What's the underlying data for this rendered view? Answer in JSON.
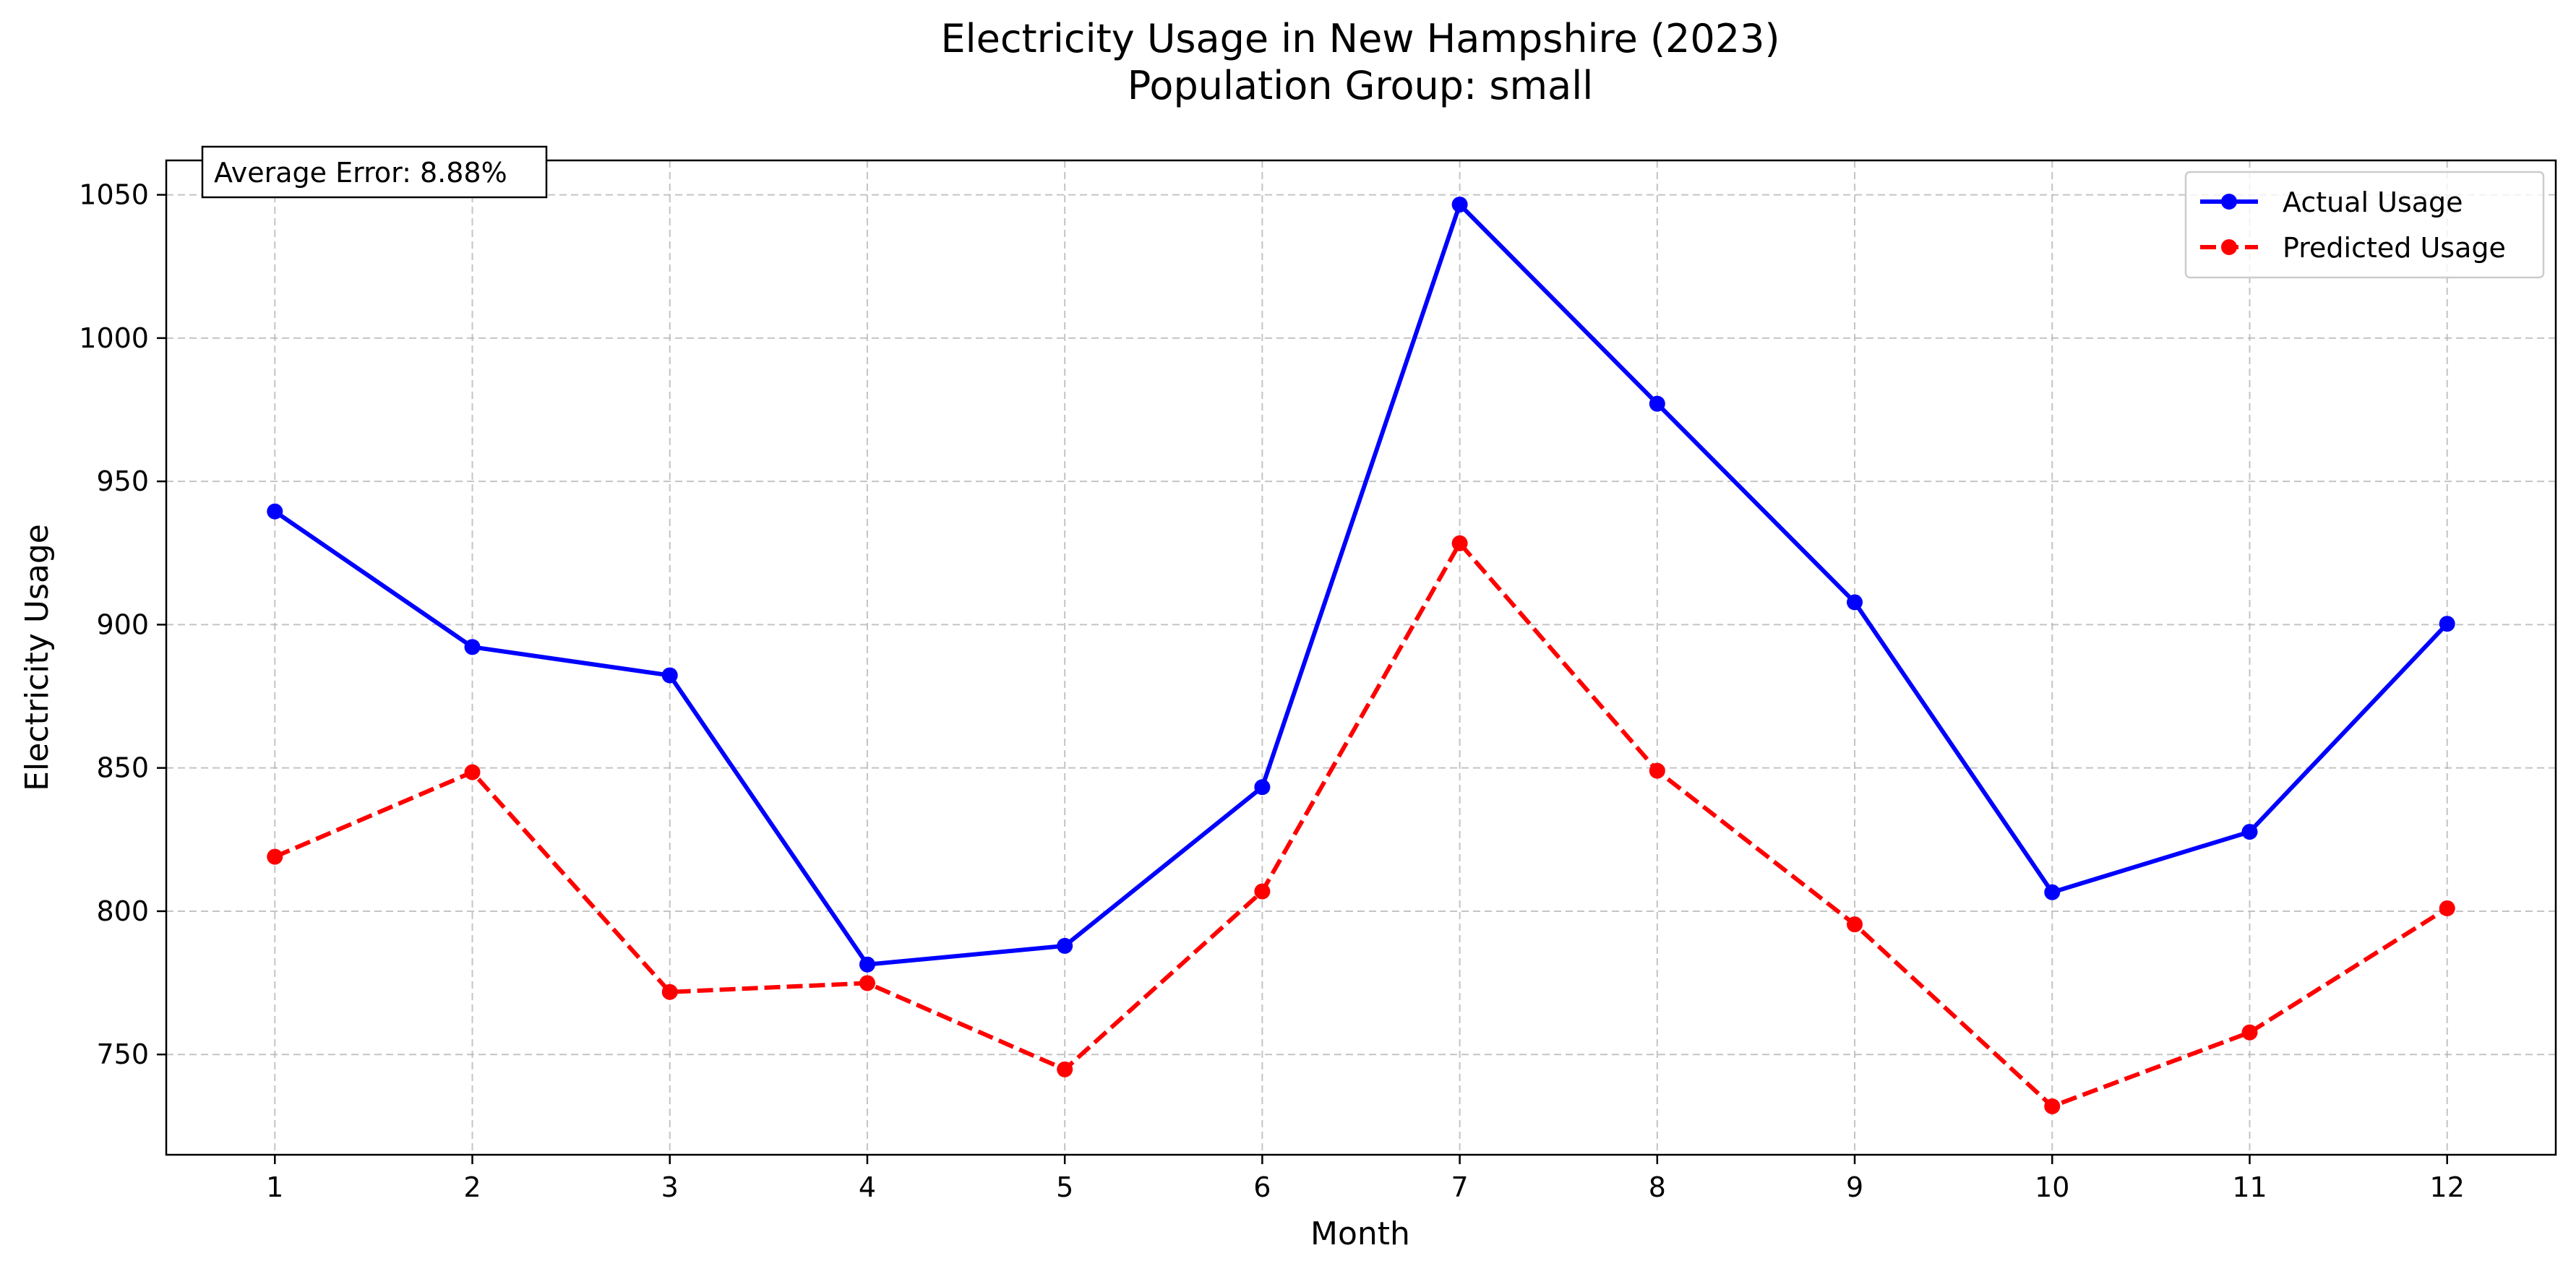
{
  "chart_data": {
    "type": "line",
    "title": "Electricity Usage in New Hampshire (2023)",
    "subtitle": "Population Group: small",
    "xlabel": "Month",
    "ylabel": "Electricity Usage",
    "x": [
      1,
      2,
      3,
      4,
      5,
      6,
      7,
      8,
      9,
      10,
      11,
      12
    ],
    "xlim": [
      0.45,
      12.55
    ],
    "ylim": [
      715,
      1062
    ],
    "yticks": [
      750,
      800,
      850,
      900,
      950,
      1000,
      1050
    ],
    "grid": true,
    "legend_position": "top-right",
    "annotation": "Average Error: 8.88%",
    "series": [
      {
        "name": "Actual Usage",
        "color": "#0000ff",
        "linestyle": "solid",
        "marker": "circle",
        "values": [
          939.5,
          892.2,
          882.3,
          781.4,
          787.9,
          843.3,
          1046.6,
          977.1,
          907.8,
          806.6,
          827.7,
          900.3
        ]
      },
      {
        "name": "Predicted Usage",
        "color": "#ff0000",
        "linestyle": "dashed",
        "marker": "circle",
        "values": [
          819.0,
          848.5,
          771.8,
          774.9,
          744.8,
          806.9,
          928.4,
          849.0,
          795.4,
          731.9,
          757.7,
          801.0
        ]
      }
    ]
  }
}
